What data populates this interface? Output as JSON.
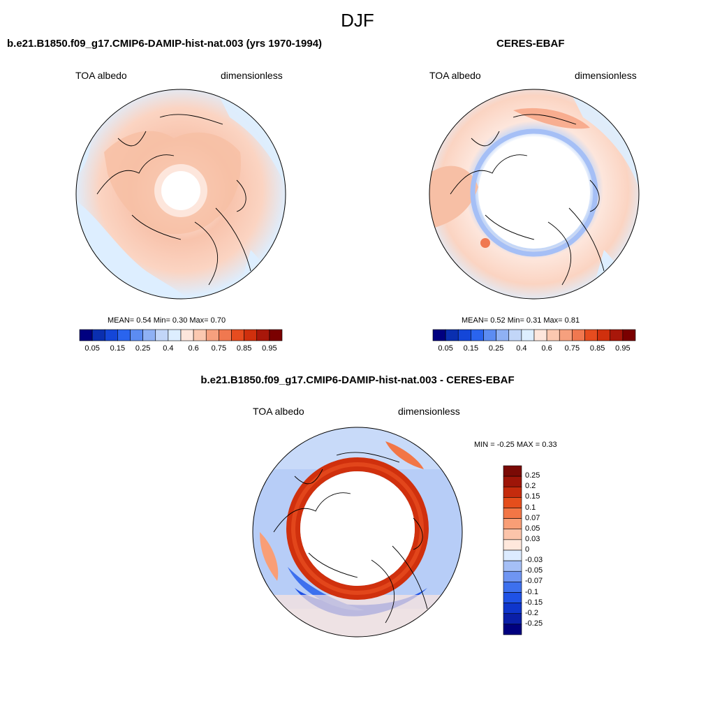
{
  "suptitle": "DJF",
  "colors": {
    "abs_levels": [
      "#000080",
      "#0a2fb0",
      "#1446d8",
      "#2a64ee",
      "#5c8cf2",
      "#8fb1f4",
      "#c2d6f8",
      "#ddeeff",
      "#fde6dc",
      "#fbc8b0",
      "#f6a07e",
      "#f07850",
      "#e64c1f",
      "#d0300d",
      "#a8170a",
      "#7a0000"
    ],
    "diff_levels": [
      "#00007f",
      "#0a1fa8",
      "#0f36cc",
      "#1f52e6",
      "#3d70ee",
      "#6f95f2",
      "#a5bff6",
      "#dcebff",
      "#ffe8dc",
      "#fcc4aa",
      "#f99e76",
      "#f27646",
      "#e54e1c",
      "#c52b0d",
      "#9e1508",
      "#7a0a05"
    ]
  },
  "panels": [
    {
      "title": "b.e21.B1850.f09_g17.CMIP6-DAMIP-hist-nat.003 (yrs 1970-1994)",
      "left_label": "TOA albedo",
      "right_label": "dimensionless",
      "stats": "MEAN=   0.54  Min=    0.30  Max=    0.70",
      "colorbar_ticks": [
        "0.05",
        "0.15",
        "0.25",
        "0.4",
        "0.6",
        "0.75",
        "0.85",
        "0.95"
      ]
    },
    {
      "title": "CERES-EBAF",
      "left_label": "TOA albedo",
      "right_label": "dimensionless",
      "stats": "MEAN=   0.52  Min=    0.31  Max=    0.81",
      "colorbar_ticks": [
        "0.05",
        "0.15",
        "0.25",
        "0.4",
        "0.6",
        "0.75",
        "0.85",
        "0.95"
      ]
    },
    {
      "title": "b.e21.B1850.f09_g17.CMIP6-DAMIP-hist-nat.003 - CERES-EBAF",
      "left_label": "TOA albedo",
      "right_label": "dimensionless",
      "stats": "MIN =  -0.25 MAX =    0.33",
      "colorbar_ticks": [
        "0.25",
        "0.2",
        "0.15",
        "0.1",
        "0.07",
        "0.05",
        "0.03",
        "0",
        "-0.03",
        "-0.05",
        "-0.07",
        "-0.1",
        "-0.15",
        "-0.2",
        "-0.25"
      ]
    }
  ]
}
